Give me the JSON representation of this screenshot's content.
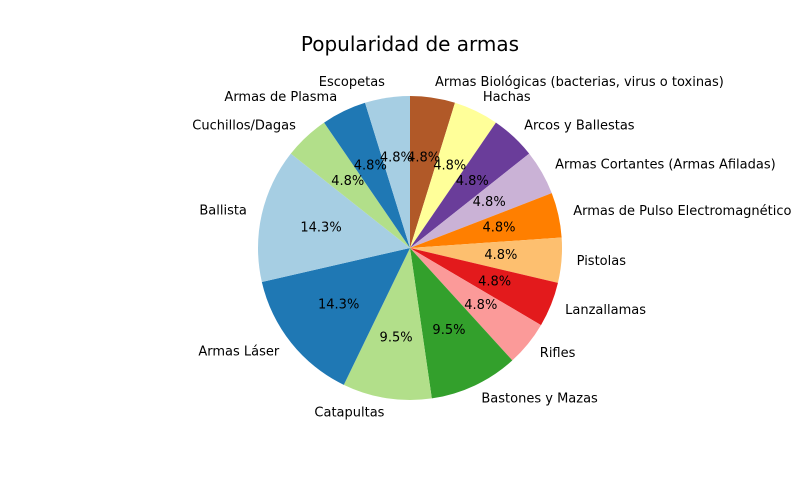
{
  "chart_data": {
    "type": "pie",
    "title": "Popularidad de armas",
    "start_angle_deg": 90,
    "direction": "clockwise",
    "slices": [
      {
        "label": "Armas Biológicas (bacterias, virus o toxinas)",
        "value": 4.8,
        "pct": "4.8%",
        "color": "#b15928"
      },
      {
        "label": "Hachas",
        "value": 4.8,
        "pct": "4.8%",
        "color": "#ffff99"
      },
      {
        "label": "Arcos y Ballestas",
        "value": 4.8,
        "pct": "4.8%",
        "color": "#6a3d9a"
      },
      {
        "label": "Armas Cortantes (Armas Afiladas)",
        "value": 4.8,
        "pct": "4.8%",
        "color": "#cab2d6"
      },
      {
        "label": "Armas de Pulso Electromagnético",
        "value": 4.8,
        "pct": "4.8%",
        "color": "#ff7f00"
      },
      {
        "label": "Pistolas",
        "value": 4.8,
        "pct": "4.8%",
        "color": "#fdbf6f"
      },
      {
        "label": "Lanzallamas",
        "value": 4.8,
        "pct": "4.8%",
        "color": "#e31a1c"
      },
      {
        "label": "Rifles",
        "value": 4.8,
        "pct": "4.8%",
        "color": "#fb9a99"
      },
      {
        "label": "Bastones y Mazas",
        "value": 9.5,
        "pct": "9.5%",
        "color": "#33a02c"
      },
      {
        "label": "Catapultas",
        "value": 9.5,
        "pct": "9.5%",
        "color": "#b2df8a"
      },
      {
        "label": "Armas Láser",
        "value": 14.3,
        "pct": "14.3%",
        "color": "#1f78b4"
      },
      {
        "label": "Ballista",
        "value": 14.3,
        "pct": "14.3%",
        "color": "#a6cee3"
      },
      {
        "label": "Cuchillos/Dagas",
        "value": 4.8,
        "pct": "4.8%",
        "color": "#b2df8a"
      },
      {
        "label": "Armas de Plasma",
        "value": 4.8,
        "pct": "4.8%",
        "color": "#1f78b4"
      },
      {
        "label": "Escopetas",
        "value": 4.8,
        "pct": "4.8%",
        "color": "#a6cee3"
      }
    ]
  }
}
